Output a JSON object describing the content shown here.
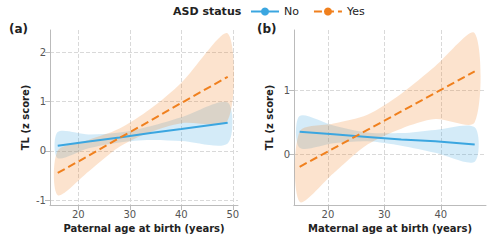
{
  "chart_data": [
    {
      "type": "line",
      "title": "(a)",
      "legend_title": "ASD status",
      "legend": "top",
      "grid": true,
      "x_label": "Paternal age at birth (years)",
      "y_label": "TL (z score)",
      "x": [
        16,
        22,
        28,
        34,
        40,
        49
      ],
      "xlim": [
        14.5,
        51
      ],
      "xticks": [
        20,
        30,
        40,
        50
      ],
      "ylim": [
        -1.1,
        2.45
      ],
      "yticks": [
        -1,
        0,
        1,
        2
      ],
      "series": [
        {
          "name": "No",
          "color": "#3ba6e0",
          "line_style": "solid",
          "values": [
            0.1,
            0.19,
            0.27,
            0.36,
            0.44,
            0.57
          ],
          "lower": [
            -0.15,
            0.05,
            0.17,
            0.22,
            0.2,
            0.15
          ],
          "upper": [
            0.38,
            0.33,
            0.37,
            0.5,
            0.68,
            0.98
          ]
        },
        {
          "name": "Yes",
          "color": "#f0801e",
          "line_style": "dashed",
          "values": [
            -0.45,
            -0.1,
            0.26,
            0.61,
            0.97,
            1.5
          ],
          "lower": [
            -0.9,
            -0.42,
            0.08,
            0.38,
            0.56,
            0.62
          ],
          "upper": [
            0.0,
            0.22,
            0.45,
            0.85,
            1.38,
            2.38
          ]
        }
      ]
    },
    {
      "type": "line",
      "title": "(b)",
      "grid": true,
      "x_label": "Maternal age at birth (years)",
      "y_label": "TL (z score)",
      "x": [
        15,
        21,
        27,
        33,
        39,
        46
      ],
      "xlim": [
        14,
        48
      ],
      "xticks": [
        20,
        30,
        40
      ],
      "ylim": [
        -0.8,
        1.95
      ],
      "yticks": [
        0,
        1
      ],
      "series": [
        {
          "name": "No",
          "color": "#3ba6e0",
          "line_style": "solid",
          "values": [
            0.35,
            0.31,
            0.27,
            0.23,
            0.2,
            0.15
          ],
          "lower": [
            0.1,
            0.17,
            0.2,
            0.13,
            0.02,
            -0.12
          ],
          "upper": [
            0.6,
            0.45,
            0.34,
            0.33,
            0.38,
            0.42
          ]
        },
        {
          "name": "Yes",
          "color": "#f0801e",
          "line_style": "dashed",
          "values": [
            -0.2,
            0.09,
            0.38,
            0.67,
            0.96,
            1.3
          ],
          "lower": [
            -0.75,
            -0.3,
            0.15,
            0.4,
            0.55,
            0.5
          ],
          "upper": [
            0.35,
            0.48,
            0.62,
            0.95,
            1.38,
            1.9
          ]
        }
      ]
    }
  ]
}
